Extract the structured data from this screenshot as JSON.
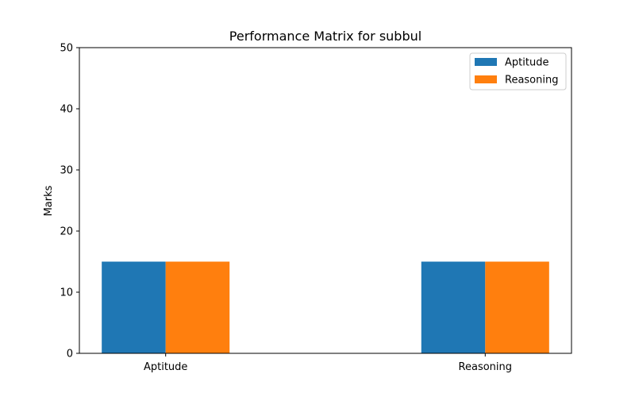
{
  "chart_data": {
    "type": "bar",
    "title": "Performance Matrix for subbul",
    "xlabel": "",
    "ylabel": "Marks",
    "categories": [
      "Aptitude",
      "Reasoning"
    ],
    "series": [
      {
        "name": "Aptitude",
        "values": [
          15,
          15
        ],
        "color": "#1f77b4"
      },
      {
        "name": "Reasoning",
        "values": [
          15,
          15
        ],
        "color": "#ff7f0e"
      }
    ],
    "ylim": [
      0,
      50
    ],
    "yticks": [
      0,
      10,
      20,
      30,
      40,
      50
    ],
    "grid": false,
    "legend_position": "top-right"
  }
}
